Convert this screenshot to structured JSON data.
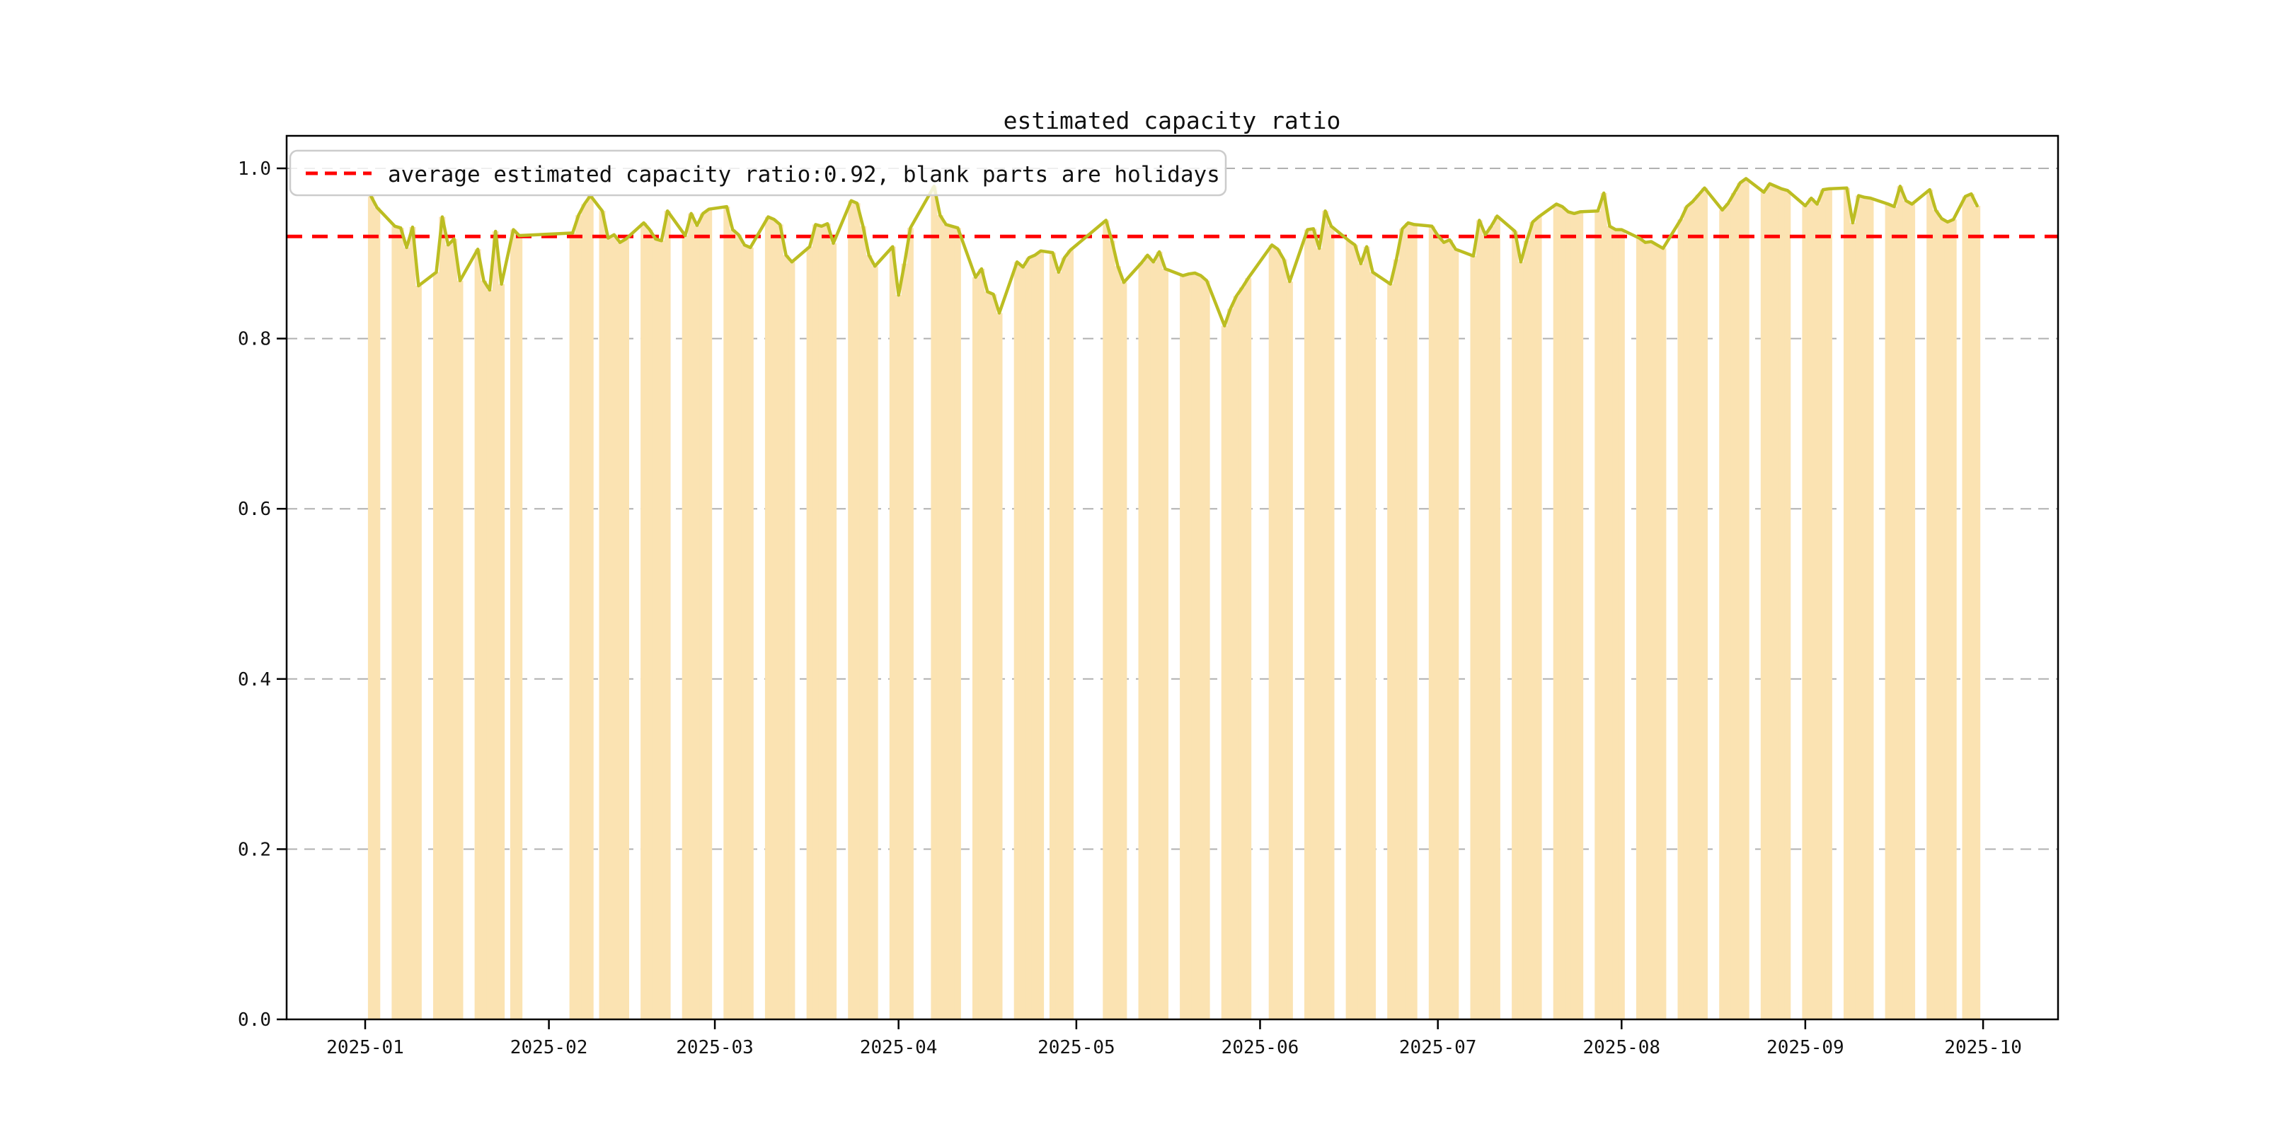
{
  "figure": {
    "title": "estimated capacity ratio",
    "background_color": "#ffffff"
  },
  "legend": {
    "label": "average estimated capacity ratio:0.92, blank parts are holidays",
    "sample_line_color": "#ff0000",
    "sample_line_style": "dashed",
    "position": "upper left"
  },
  "chart_data": {
    "type": "line",
    "title": "estimated capacity ratio",
    "xlabel": "",
    "ylabel": "",
    "ylim": [
      0.0,
      1.04
    ],
    "grid": "horizontal dashed gridlines at 0.2 intervals",
    "legend_position": "upper left",
    "x_tick_labels": [
      "2025-01",
      "2025-02",
      "2025-03",
      "2025-04",
      "2025-05",
      "2025-06",
      "2025-07",
      "2025-08",
      "2025-09",
      "2025-10"
    ],
    "y_tick_labels": [
      "0.0",
      "0.2",
      "0.4",
      "0.6",
      "0.8",
      "1.0"
    ],
    "y_tick_values": [
      0.0,
      0.2,
      0.4,
      0.6,
      0.8,
      1.0
    ],
    "average_line": {
      "value": 0.92,
      "color": "#ff0000",
      "style": "dashed"
    },
    "series_note": "olive line = daily estimated capacity ratio on workdays; pale orange bars (width 1 day, height = value) mark workdays; blank parts are weekends/holidays",
    "colors": {
      "line": "#bcbd22",
      "workday_bar": "#fbe3b2",
      "average_line": "#ff0000",
      "gridline": "#b0b0b0",
      "spine": "#000000"
    },
    "dates": [
      "2025-01-02",
      "2025-01-03",
      "2025-01-06",
      "2025-01-07",
      "2025-01-08",
      "2025-01-09",
      "2025-01-10",
      "2025-01-13",
      "2025-01-14",
      "2025-01-15",
      "2025-01-16",
      "2025-01-17",
      "2025-01-20",
      "2025-01-21",
      "2025-01-22",
      "2025-01-23",
      "2025-01-24",
      "2025-01-26",
      "2025-01-27",
      "2025-02-05",
      "2025-02-06",
      "2025-02-07",
      "2025-02-08",
      "2025-02-10",
      "2025-02-11",
      "2025-02-12",
      "2025-02-13",
      "2025-02-14",
      "2025-02-17",
      "2025-02-18",
      "2025-02-19",
      "2025-02-20",
      "2025-02-21",
      "2025-02-24",
      "2025-02-25",
      "2025-02-26",
      "2025-02-27",
      "2025-02-28",
      "2025-03-03",
      "2025-03-04",
      "2025-03-05",
      "2025-03-06",
      "2025-03-07",
      "2025-03-10",
      "2025-03-11",
      "2025-03-12",
      "2025-03-13",
      "2025-03-14",
      "2025-03-17",
      "2025-03-18",
      "2025-03-19",
      "2025-03-20",
      "2025-03-21",
      "2025-03-24",
      "2025-03-25",
      "2025-03-26",
      "2025-03-27",
      "2025-03-28",
      "2025-03-31",
      "2025-04-01",
      "2025-04-02",
      "2025-04-03",
      "2025-04-07",
      "2025-04-08",
      "2025-04-09",
      "2025-04-10",
      "2025-04-11",
      "2025-04-14",
      "2025-04-15",
      "2025-04-16",
      "2025-04-17",
      "2025-04-18",
      "2025-04-21",
      "2025-04-22",
      "2025-04-23",
      "2025-04-24",
      "2025-04-25",
      "2025-04-27",
      "2025-04-28",
      "2025-04-29",
      "2025-04-30",
      "2025-05-06",
      "2025-05-07",
      "2025-05-08",
      "2025-05-09",
      "2025-05-12",
      "2025-05-13",
      "2025-05-14",
      "2025-05-15",
      "2025-05-16",
      "2025-05-19",
      "2025-05-20",
      "2025-05-21",
      "2025-05-22",
      "2025-05-23",
      "2025-05-26",
      "2025-05-27",
      "2025-05-28",
      "2025-05-29",
      "2025-05-30",
      "2025-06-03",
      "2025-06-04",
      "2025-06-05",
      "2025-06-06",
      "2025-06-09",
      "2025-06-10",
      "2025-06-11",
      "2025-06-12",
      "2025-06-13",
      "2025-06-16",
      "2025-06-17",
      "2025-06-18",
      "2025-06-19",
      "2025-06-20",
      "2025-06-23",
      "2025-06-24",
      "2025-06-25",
      "2025-06-26",
      "2025-06-27",
      "2025-06-30",
      "2025-07-01",
      "2025-07-02",
      "2025-07-03",
      "2025-07-04",
      "2025-07-07",
      "2025-07-08",
      "2025-07-09",
      "2025-07-10",
      "2025-07-11",
      "2025-07-14",
      "2025-07-15",
      "2025-07-16",
      "2025-07-17",
      "2025-07-18",
      "2025-07-21",
      "2025-07-22",
      "2025-07-23",
      "2025-07-24",
      "2025-07-25",
      "2025-07-28",
      "2025-07-29",
      "2025-07-30",
      "2025-07-31",
      "2025-08-01",
      "2025-08-04",
      "2025-08-05",
      "2025-08-06",
      "2025-08-07",
      "2025-08-08",
      "2025-08-11",
      "2025-08-12",
      "2025-08-13",
      "2025-08-14",
      "2025-08-15",
      "2025-08-18",
      "2025-08-19",
      "2025-08-20",
      "2025-08-21",
      "2025-08-22",
      "2025-08-25",
      "2025-08-26",
      "2025-08-27",
      "2025-08-28",
      "2025-08-29",
      "2025-09-01",
      "2025-09-02",
      "2025-09-03",
      "2025-09-04",
      "2025-09-05",
      "2025-09-08",
      "2025-09-09",
      "2025-09-10",
      "2025-09-11",
      "2025-09-12",
      "2025-09-15",
      "2025-09-16",
      "2025-09-17",
      "2025-09-18",
      "2025-09-19",
      "2025-09-22",
      "2025-09-23",
      "2025-09-24",
      "2025-09-25",
      "2025-09-26",
      "2025-09-28",
      "2025-09-29",
      "2025-09-30"
    ],
    "values": [
      0.967,
      0.954,
      0.932,
      0.93,
      0.907,
      0.931,
      0.862,
      0.878,
      0.943,
      0.91,
      0.917,
      0.868,
      0.905,
      0.868,
      0.857,
      0.926,
      0.864,
      0.928,
      0.921,
      0.924,
      0.945,
      0.958,
      0.968,
      0.95,
      0.918,
      0.922,
      0.913,
      0.917,
      0.936,
      0.928,
      0.917,
      0.915,
      0.95,
      0.921,
      0.947,
      0.933,
      0.947,
      0.952,
      0.955,
      0.928,
      0.922,
      0.91,
      0.907,
      0.943,
      0.94,
      0.934,
      0.898,
      0.89,
      0.908,
      0.934,
      0.932,
      0.935,
      0.912,
      0.962,
      0.959,
      0.932,
      0.898,
      0.885,
      0.908,
      0.851,
      0.888,
      0.93,
      0.979,
      0.945,
      0.934,
      0.932,
      0.93,
      0.872,
      0.882,
      0.855,
      0.852,
      0.83,
      0.89,
      0.884,
      0.895,
      0.898,
      0.903,
      0.901,
      0.878,
      0.895,
      0.904,
      0.939,
      0.915,
      0.885,
      0.866,
      0.889,
      0.898,
      0.89,
      0.902,
      0.882,
      0.874,
      0.876,
      0.877,
      0.874,
      0.868,
      0.815,
      0.835,
      0.85,
      0.86,
      0.871,
      0.91,
      0.905,
      0.893,
      0.867,
      0.928,
      0.929,
      0.906,
      0.95,
      0.932,
      0.915,
      0.91,
      0.888,
      0.908,
      0.878,
      0.864,
      0.893,
      0.929,
      0.936,
      0.934,
      0.932,
      0.921,
      0.913,
      0.916,
      0.905,
      0.897,
      0.939,
      0.922,
      0.932,
      0.944,
      0.926,
      0.89,
      0.915,
      0.937,
      0.943,
      0.958,
      0.955,
      0.949,
      0.947,
      0.949,
      0.95,
      0.971,
      0.932,
      0.928,
      0.928,
      0.918,
      0.913,
      0.914,
      0.91,
      0.906,
      0.94,
      0.955,
      0.961,
      0.969,
      0.977,
      0.951,
      0.959,
      0.971,
      0.983,
      0.988,
      0.972,
      0.982,
      0.979,
      0.976,
      0.974,
      0.956,
      0.965,
      0.958,
      0.975,
      0.976,
      0.977,
      0.936,
      0.968,
      0.966,
      0.965,
      0.958,
      0.955,
      0.979,
      0.962,
      0.958,
      0.975,
      0.951,
      0.941,
      0.937,
      0.94,
      0.967,
      0.97,
      0.956
    ]
  }
}
